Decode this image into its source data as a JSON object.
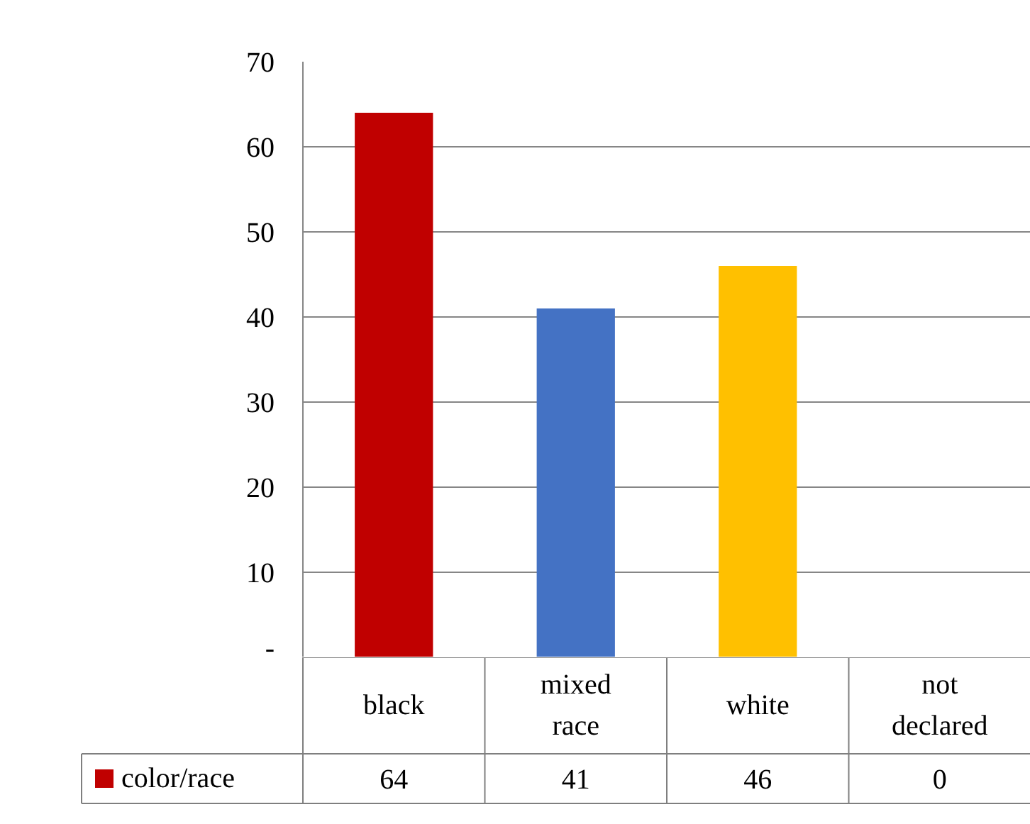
{
  "chart_data": {
    "type": "bar",
    "categories": [
      "black",
      "mixed race",
      "white",
      "not declared"
    ],
    "series": [
      {
        "name": "color/race",
        "color": "#c00000",
        "colors": [
          "#c00000",
          "#4472c4",
          "#ffc000",
          "#a5a5a5"
        ],
        "values": [
          64,
          41,
          46,
          0
        ]
      }
    ],
    "ylim": [
      0,
      70
    ],
    "yticks": [
      {
        "value": 0,
        "label": "-"
      },
      10,
      20,
      30,
      40,
      50,
      60,
      70
    ],
    "grid": "y",
    "data_labels": true,
    "legend": "bottom left"
  }
}
